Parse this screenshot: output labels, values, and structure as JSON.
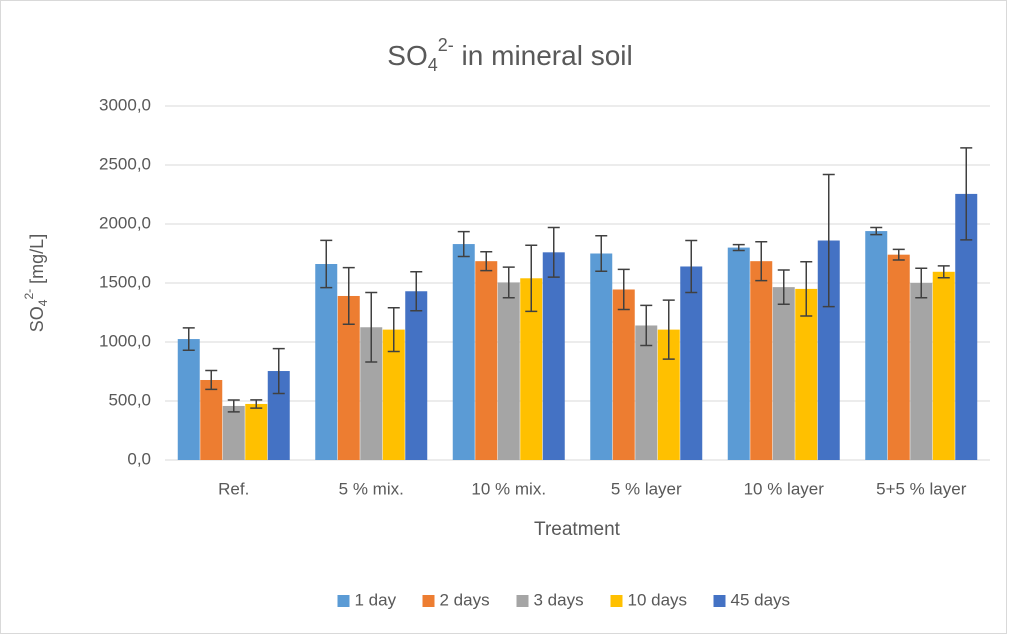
{
  "chart_data": {
    "type": "bar",
    "title": {
      "base": "SO",
      "sub": "4",
      "sup": "2-",
      "rest": " in mineral soil"
    },
    "y_label": {
      "base": "SO",
      "sub": "4",
      "sup": "2-",
      "rest": "  [mg/L]"
    },
    "x_label": "Treatment",
    "categories": [
      "Ref.",
      "5 % mix.",
      "10 % mix.",
      "5 % layer",
      "10 % layer",
      "5+5 % layer"
    ],
    "series": [
      {
        "name": "1 day",
        "color": "#5b9bd5",
        "values": [
          1025,
          1661,
          1830,
          1750,
          1800,
          1940
        ],
        "errors": [
          95,
          200,
          105,
          150,
          25,
          30
        ]
      },
      {
        "name": "2 days",
        "color": "#ed7d31",
        "values": [
          678,
          1390,
          1685,
          1445,
          1685,
          1740
        ],
        "errors": [
          80,
          240,
          80,
          170,
          165,
          45
        ]
      },
      {
        "name": "3 days",
        "color": "#a5a5a5",
        "values": [
          458,
          1125,
          1505,
          1140,
          1465,
          1500
        ],
        "errors": [
          50,
          295,
          130,
          170,
          145,
          125
        ]
      },
      {
        "name": "10 days",
        "color": "#ffc000",
        "values": [
          475,
          1105,
          1540,
          1105,
          1450,
          1595
        ],
        "errors": [
          35,
          185,
          280,
          250,
          230,
          50
        ]
      },
      {
        "name": "45 days",
        "color": "#4472c4",
        "values": [
          754,
          1430,
          1760,
          1640,
          1860,
          2255
        ],
        "errors": [
          190,
          165,
          210,
          220,
          560,
          390
        ]
      }
    ],
    "ylim": [
      0,
      3000
    ],
    "yticks": [
      {
        "value": 0,
        "label": "0,0"
      },
      {
        "value": 500,
        "label": "500,0"
      },
      {
        "value": 1000,
        "label": "1000,0"
      },
      {
        "value": 1500,
        "label": "1500,0"
      },
      {
        "value": 2000,
        "label": "2000,0"
      },
      {
        "value": 2500,
        "label": "2500,0"
      },
      {
        "value": 3000,
        "label": "3000,0"
      }
    ],
    "grid": true,
    "legend": "bottom"
  }
}
